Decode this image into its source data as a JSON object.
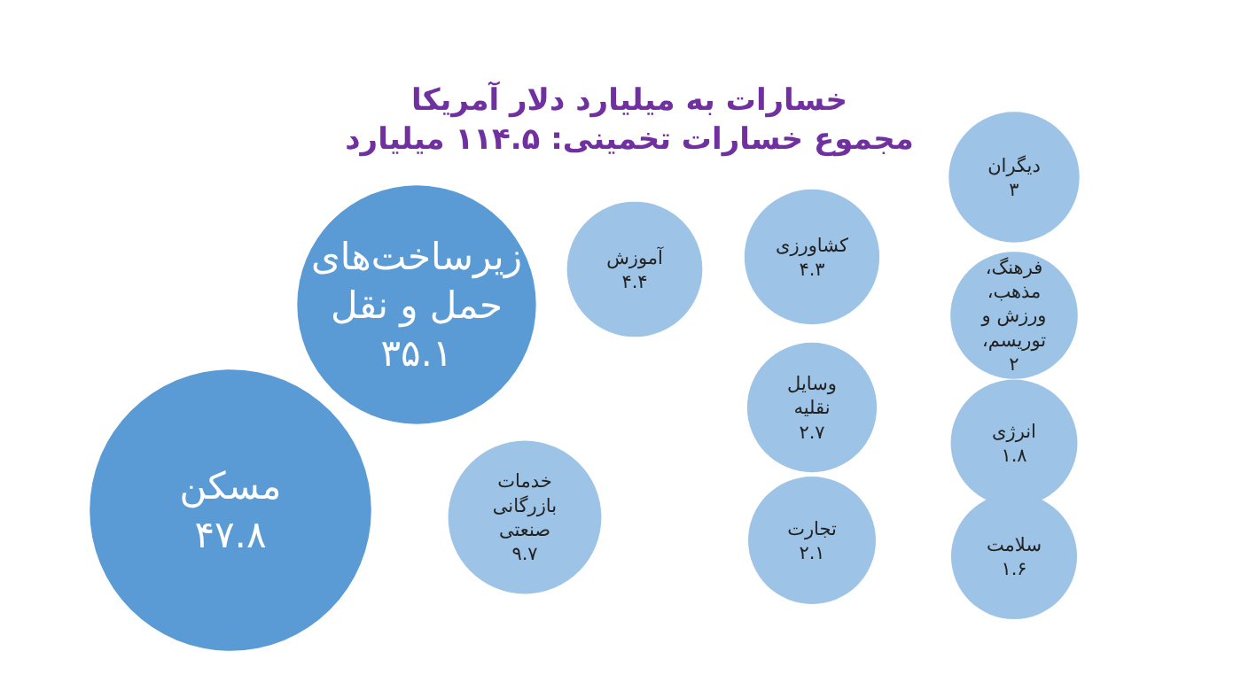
{
  "chart_data": {
    "type": "other",
    "title": "خسارات به میلیارد دلار آمریکا",
    "subtitle": "مجموع خسارات تخمینی: ۱۱۴.۵ میلیارد",
    "categories": [
      "مسکن",
      "زیرساخت‌های حمل و نقل",
      "خدمات بازرگانی صنعتی",
      "آموزش",
      "کشاورزی",
      "وسایل نقلیه",
      "تجارت",
      "دیگران",
      "فرهنگ، مذهب، ورزش و توریسم،",
      "انرژی",
      "سلامت"
    ],
    "values": [
      47.8,
      35.1,
      9.7,
      4.4,
      4.3,
      2.7,
      2.1,
      3,
      2,
      1.8,
      1.6
    ],
    "colors": [
      "#5b9bd5",
      "#5b9bd5",
      "#9dc3e6",
      "#9dc3e6",
      "#9dc3e6",
      "#9dc3e6",
      "#9dc3e6",
      "#9dc3e6",
      "#9dc3e6",
      "#9dc3e6",
      "#9dc3e6"
    ],
    "value_labels": [
      "۴۷.۸",
      "۳۵.۱",
      "۹.۷",
      "۴.۴",
      "۴.۳",
      "۲.۷",
      "۲.۱",
      "۳",
      "۲",
      "۱.۸",
      "۱.۶"
    ]
  }
}
